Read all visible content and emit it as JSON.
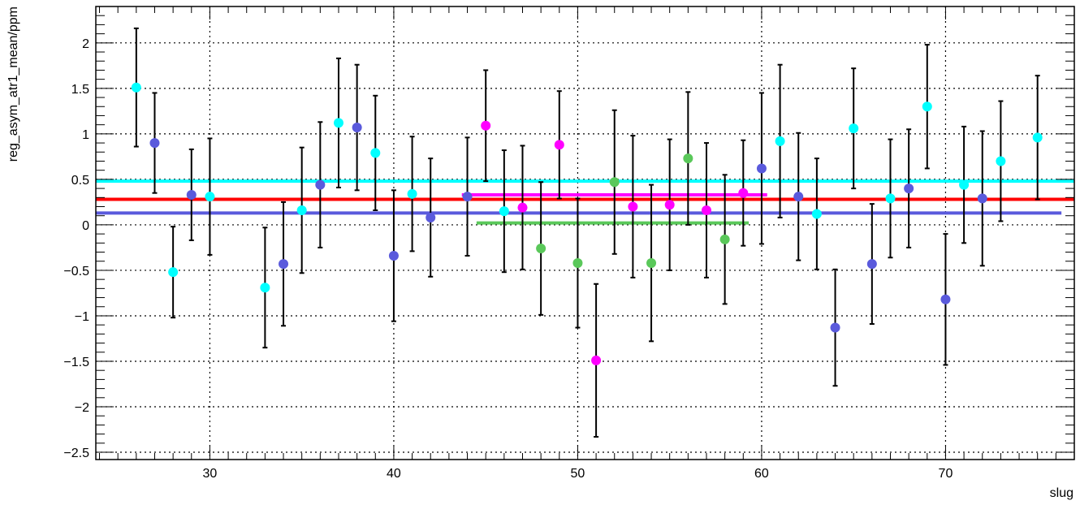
{
  "chart_data": {
    "type": "scatter",
    "title": "",
    "xlabel": "slug",
    "ylabel": "reg_asym_atr1_mean/ppm",
    "xlim": [
      23.8,
      77.0
    ],
    "ylim": [
      -2.58,
      2.4
    ],
    "x_ticks": [
      30,
      40,
      50,
      60,
      70
    ],
    "x_tick_labels": [
      "30",
      "40",
      "50",
      "60",
      "70"
    ],
    "y_ticks": [
      -2.5,
      -2,
      -1.5,
      -1,
      -0.5,
      0,
      0.5,
      1,
      1.5,
      2
    ],
    "y_tick_labels": [
      "−2.5",
      "−2",
      "−1.5",
      "−1",
      "−0.5",
      "0",
      "0.5",
      "1",
      "1.5",
      "2"
    ],
    "grid": true,
    "colors": {
      "cyan": "#00ffff",
      "blue": "#5a5adc",
      "magenta": "#ff00ff",
      "green": "#5ac85a",
      "red": "#ff0000",
      "errorbar": "#000000"
    },
    "series": [
      {
        "color": "cyan",
        "points": [
          {
            "x": 26,
            "y": 1.51,
            "err": 0.65
          },
          {
            "x": 28,
            "y": -0.52,
            "err": 0.5
          },
          {
            "x": 30,
            "y": 0.31,
            "err": 0.64
          },
          {
            "x": 33,
            "y": -0.69,
            "err": 0.66
          },
          {
            "x": 35,
            "y": 0.16,
            "err": 0.69
          },
          {
            "x": 37,
            "y": 1.12,
            "err": 0.71
          },
          {
            "x": 39,
            "y": 0.79,
            "err": 0.63
          },
          {
            "x": 41,
            "y": 0.34,
            "err": 0.63
          },
          {
            "x": 46,
            "y": 0.15,
            "err": 0.67
          },
          {
            "x": 61,
            "y": 0.92,
            "err": 0.84
          },
          {
            "x": 63,
            "y": 0.12,
            "err": 0.61
          },
          {
            "x": 65,
            "y": 1.06,
            "err": 0.66
          },
          {
            "x": 67,
            "y": 0.29,
            "err": 0.65
          },
          {
            "x": 69,
            "y": 1.3,
            "err": 0.68
          },
          {
            "x": 71,
            "y": 0.44,
            "err": 0.64
          },
          {
            "x": 73,
            "y": 0.7,
            "err": 0.66
          },
          {
            "x": 75,
            "y": 0.96,
            "err": 0.68
          }
        ]
      },
      {
        "color": "blue",
        "points": [
          {
            "x": 27,
            "y": 0.9,
            "err": 0.55
          },
          {
            "x": 29,
            "y": 0.33,
            "err": 0.5
          },
          {
            "x": 34,
            "y": -0.43,
            "err": 0.68
          },
          {
            "x": 36,
            "y": 0.44,
            "err": 0.69
          },
          {
            "x": 38,
            "y": 1.07,
            "err": 0.69
          },
          {
            "x": 40,
            "y": -0.34,
            "err": 0.72
          },
          {
            "x": 42,
            "y": 0.08,
            "err": 0.65
          },
          {
            "x": 44,
            "y": 0.31,
            "err": 0.65
          },
          {
            "x": 60,
            "y": 0.62,
            "err": 0.83
          },
          {
            "x": 62,
            "y": 0.31,
            "err": 0.7
          },
          {
            "x": 64,
            "y": -1.13,
            "err": 0.64
          },
          {
            "x": 66,
            "y": -0.43,
            "err": 0.66
          },
          {
            "x": 68,
            "y": 0.4,
            "err": 0.65
          },
          {
            "x": 70,
            "y": -0.82,
            "err": 0.72
          },
          {
            "x": 72,
            "y": 0.29,
            "err": 0.74
          }
        ]
      },
      {
        "color": "magenta",
        "points": [
          {
            "x": 45,
            "y": 1.09,
            "err": 0.61
          },
          {
            "x": 47,
            "y": 0.19,
            "err": 0.68
          },
          {
            "x": 49,
            "y": 0.88,
            "err": 0.59
          },
          {
            "x": 51,
            "y": -1.49,
            "err": 0.84
          },
          {
            "x": 53,
            "y": 0.2,
            "err": 0.78
          },
          {
            "x": 55,
            "y": 0.22,
            "err": 0.72
          },
          {
            "x": 57,
            "y": 0.16,
            "err": 0.74
          },
          {
            "x": 59,
            "y": 0.35,
            "err": 0.58
          }
        ]
      },
      {
        "color": "green",
        "points": [
          {
            "x": 48,
            "y": -0.26,
            "err": 0.73
          },
          {
            "x": 50,
            "y": -0.42,
            "err": 0.71
          },
          {
            "x": 52,
            "y": 0.47,
            "err": 0.79
          },
          {
            "x": 54,
            "y": -0.42,
            "err": 0.86
          },
          {
            "x": 56,
            "y": 0.73,
            "err": 0.73
          },
          {
            "x": 58,
            "y": -0.16,
            "err": 0.71
          }
        ]
      }
    ],
    "fit_lines": [
      {
        "color": "cyan",
        "x_range": [
          23.8,
          77.0
        ],
        "y": 0.48
      },
      {
        "color": "red",
        "x_range": [
          23.8,
          77.0
        ],
        "y": 0.28
      },
      {
        "color": "blue",
        "x_range": [
          23.8,
          76.3
        ],
        "y": 0.13
      },
      {
        "color": "magenta",
        "x_range": [
          43.7,
          60.3
        ],
        "y": 0.33
      },
      {
        "color": "green",
        "x_range": [
          44.5,
          59.3
        ],
        "y": 0.02
      }
    ]
  }
}
